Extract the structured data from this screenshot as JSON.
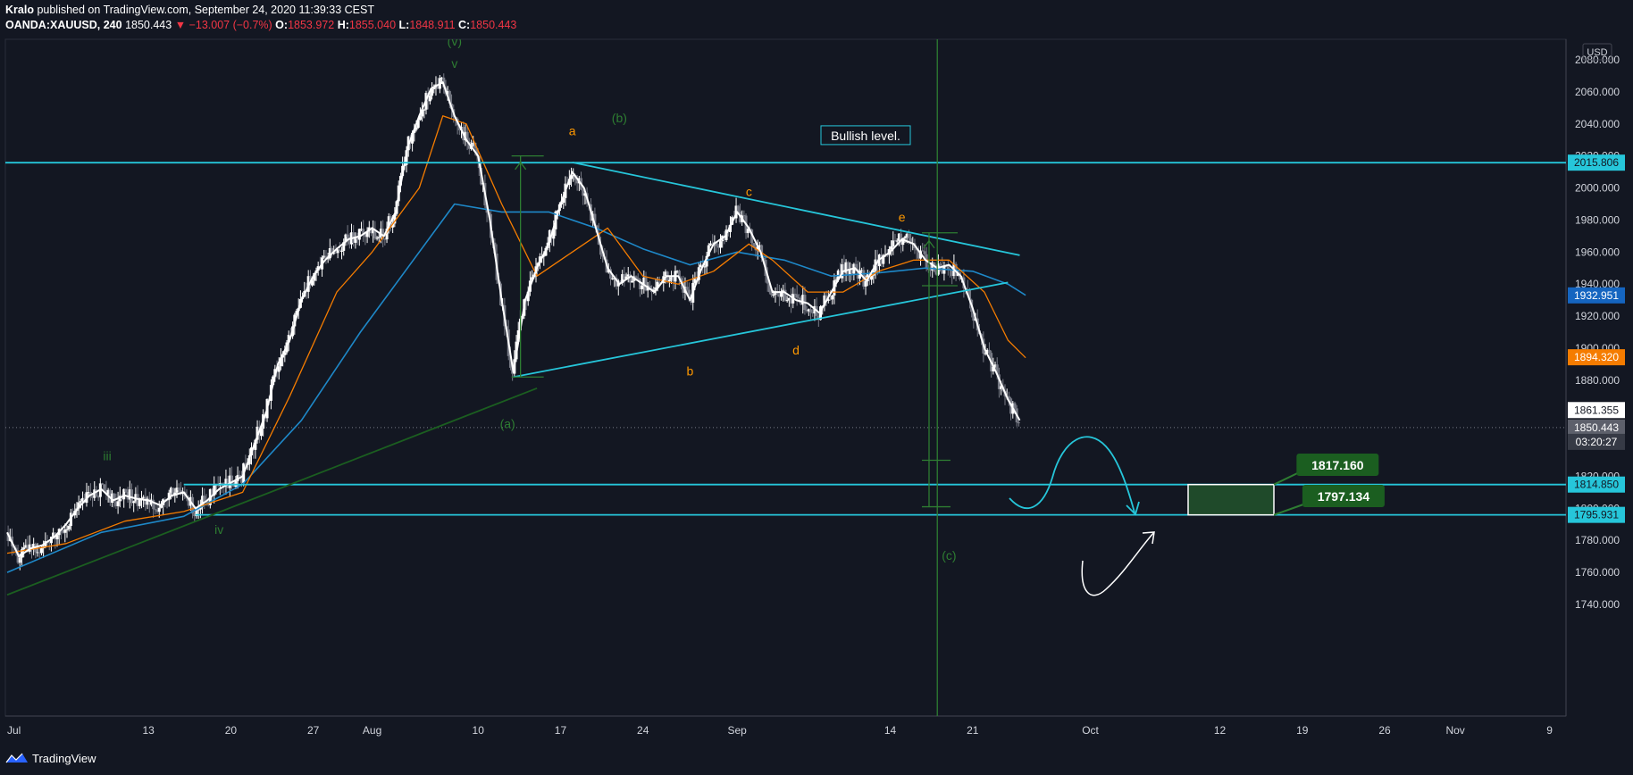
{
  "header": {
    "author": "Kralo",
    "published_text": "published on TradingView.com, September 24, 2020 11:39:33 CEST",
    "symbol": "OANDA:XAUUSD, 240",
    "last": "1850.443",
    "change": "−13.007 (−0.7%)",
    "o_label": "O:",
    "o": "1853.972",
    "h_label": "H:",
    "h": "1855.040",
    "l_label": "L:",
    "l": "1848.911",
    "c_label": "C:",
    "c": "1850.443"
  },
  "footer": {
    "brand": "TradingView",
    "logo_icon": "tradingview-logo-icon"
  },
  "colors": {
    "bg": "#131722",
    "grid": "#1e222d",
    "cyan": "#26c6da",
    "white": "#ffffff",
    "orange": "#f57c00",
    "blue": "#1e88c8",
    "green": "#1b5e20",
    "label_orange": "#ff9800",
    "wave_green": "#2e7d32",
    "up": "#ffffff",
    "down": "#787b86"
  },
  "chart_data": {
    "type": "candlestick",
    "currency": "USD",
    "y_range": [
      1730,
      2095
    ],
    "y_ticks": [
      "2080.000",
      "2060.000",
      "2040.000",
      "2020.000",
      "2000.000",
      "1980.000",
      "1960.000",
      "1940.000",
      "1920.000",
      "1900.000",
      "1880.000",
      "1860.000",
      "1840.000",
      "1820.000",
      "1800.000",
      "1780.000",
      "1760.000",
      "1740.000"
    ],
    "x_ticks": [
      {
        "label": "Jul",
        "day": 0
      },
      {
        "label": "13",
        "day": 12
      },
      {
        "label": "20",
        "day": 19
      },
      {
        "label": "27",
        "day": 26
      },
      {
        "label": "Aug",
        "day": 31
      },
      {
        "label": "10",
        "day": 40
      },
      {
        "label": "17",
        "day": 47
      },
      {
        "label": "24",
        "day": 54
      },
      {
        "label": "Sep",
        "day": 62
      },
      {
        "label": "14",
        "day": 75
      },
      {
        "label": "21",
        "day": 82
      },
      {
        "label": "Oct",
        "day": 92
      },
      {
        "label": "12",
        "day": 103
      },
      {
        "label": "19",
        "day": 110
      },
      {
        "label": "26",
        "day": 117
      },
      {
        "label": "Nov",
        "day": 123
      },
      {
        "label": "9",
        "day": 131
      }
    ],
    "price_tags": [
      {
        "value": "2015.806",
        "price": 2015.806,
        "style": "cyan"
      },
      {
        "value": "1932.951",
        "price": 1932.951,
        "style": "blue"
      },
      {
        "value": "1894.320",
        "price": 1894.32,
        "style": "orange"
      },
      {
        "value": "1861.355",
        "price": 1861.355,
        "style": "white"
      },
      {
        "value": "1850.443",
        "price": 1850.443,
        "style": "grey"
      },
      {
        "value": "03:20:27",
        "price": 1841.5,
        "style": "dark"
      },
      {
        "value": "1814.850",
        "price": 1814.85,
        "style": "cyan"
      },
      {
        "value": "1795.931",
        "price": 1795.931,
        "style": "cyan"
      }
    ],
    "price_path": [
      [
        0,
        1785
      ],
      [
        1,
        1770
      ],
      [
        2,
        1775
      ],
      [
        3,
        1777
      ],
      [
        4,
        1782
      ],
      [
        5,
        1790
      ],
      [
        6,
        1800
      ],
      [
        7,
        1808
      ],
      [
        8,
        1812
      ],
      [
        9,
        1805
      ],
      [
        10,
        1808
      ],
      [
        11,
        1806
      ],
      [
        12,
        1805
      ],
      [
        13,
        1802
      ],
      [
        14,
        1808
      ],
      [
        15,
        1810
      ],
      [
        16,
        1800
      ],
      [
        17,
        1805
      ],
      [
        18,
        1812
      ],
      [
        19,
        1816
      ],
      [
        20,
        1820
      ],
      [
        21,
        1840
      ],
      [
        22,
        1860
      ],
      [
        23,
        1890
      ],
      [
        24,
        1905
      ],
      [
        25,
        1930
      ],
      [
        26,
        1945
      ],
      [
        27,
        1955
      ],
      [
        28,
        1962
      ],
      [
        29,
        1968
      ],
      [
        30,
        1970
      ],
      [
        31,
        1975
      ],
      [
        32,
        1970
      ],
      [
        33,
        1985
      ],
      [
        34,
        2025
      ],
      [
        35,
        2045
      ],
      [
        36,
        2062
      ],
      [
        37,
        2066
      ],
      [
        38,
        2045
      ],
      [
        39,
        2030
      ],
      [
        40,
        2020
      ],
      [
        41,
        1980
      ],
      [
        42,
        1930
      ],
      [
        43,
        1885
      ],
      [
        44,
        1930
      ],
      [
        45,
        1950
      ],
      [
        46,
        1965
      ],
      [
        47,
        1990
      ],
      [
        48,
        2010
      ],
      [
        49,
        2000
      ],
      [
        50,
        1975
      ],
      [
        51,
        1950
      ],
      [
        52,
        1940
      ],
      [
        53,
        1945
      ],
      [
        54,
        1940
      ],
      [
        55,
        1935
      ],
      [
        56,
        1945
      ],
      [
        57,
        1945
      ],
      [
        58,
        1930
      ],
      [
        59,
        1950
      ],
      [
        60,
        1965
      ],
      [
        61,
        1970
      ],
      [
        62,
        1985
      ],
      [
        63,
        1975
      ],
      [
        64,
        1960
      ],
      [
        65,
        1935
      ],
      [
        66,
        1935
      ],
      [
        67,
        1930
      ],
      [
        68,
        1928
      ],
      [
        69,
        1922
      ],
      [
        70,
        1935
      ],
      [
        71,
        1948
      ],
      [
        72,
        1950
      ],
      [
        73,
        1942
      ],
      [
        74,
        1955
      ],
      [
        75,
        1960
      ],
      [
        76,
        1968
      ],
      [
        77,
        1965
      ],
      [
        78,
        1955
      ],
      [
        79,
        1950
      ],
      [
        80,
        1952
      ],
      [
        81,
        1945
      ],
      [
        82,
        1925
      ],
      [
        83,
        1900
      ],
      [
        84,
        1885
      ],
      [
        85,
        1868
      ],
      [
        86,
        1855
      ]
    ],
    "indicators": {
      "orange_ma": [
        [
          0,
          1772
        ],
        [
          5,
          1778
        ],
        [
          10,
          1792
        ],
        [
          15,
          1798
        ],
        [
          20,
          1810
        ],
        [
          24,
          1870
        ],
        [
          28,
          1935
        ],
        [
          31,
          1960
        ],
        [
          35,
          2000
        ],
        [
          37,
          2045
        ],
        [
          39,
          2040
        ],
        [
          42,
          1990
        ],
        [
          45,
          1945
        ],
        [
          48,
          1960
        ],
        [
          51,
          1975
        ],
        [
          54,
          1945
        ],
        [
          57,
          1940
        ],
        [
          60,
          1948
        ],
        [
          63,
          1965
        ],
        [
          65,
          1955
        ],
        [
          68,
          1935
        ],
        [
          71,
          1935
        ],
        [
          74,
          1948
        ],
        [
          77,
          1955
        ],
        [
          80,
          1955
        ],
        [
          83,
          1935
        ],
        [
          85,
          1905
        ],
        [
          86.5,
          1894
        ]
      ],
      "blue_ma": [
        [
          0,
          1760
        ],
        [
          8,
          1785
        ],
        [
          15,
          1795
        ],
        [
          20,
          1815
        ],
        [
          25,
          1855
        ],
        [
          30,
          1910
        ],
        [
          35,
          1960
        ],
        [
          38,
          1990
        ],
        [
          42,
          1985
        ],
        [
          46,
          1985
        ],
        [
          50,
          1975
        ],
        [
          54,
          1962
        ],
        [
          58,
          1952
        ],
        [
          62,
          1960
        ],
        [
          66,
          1955
        ],
        [
          70,
          1945
        ],
        [
          74,
          1947
        ],
        [
          78,
          1950
        ],
        [
          82,
          1948
        ],
        [
          85,
          1940
        ],
        [
          86.5,
          1933
        ]
      ]
    },
    "lines": [
      {
        "name": "bullish-level-line",
        "from": [
          -3,
          2015.806
        ],
        "to": [
          150,
          2015.806
        ]
      },
      {
        "name": "support-1814",
        "from": [
          15,
          1814.85
        ],
        "to": [
          150,
          1814.85
        ]
      },
      {
        "name": "support-1795",
        "from": [
          16,
          1795.931
        ],
        "to": [
          150,
          1795.931
        ]
      },
      {
        "name": "triangle-upper",
        "from": [
          48,
          2016
        ],
        "to": [
          86,
          1958
        ]
      },
      {
        "name": "triangle-lower",
        "from": [
          43,
          1882
        ],
        "to": [
          85,
          1941
        ]
      },
      {
        "name": "long-trendline",
        "from": [
          0,
          1746
        ],
        "to": [
          45,
          1875
        ]
      }
    ],
    "annotations": {
      "labels": [
        {
          "text": "(v)",
          "day": 38,
          "price": 2089,
          "color": "wave_green"
        },
        {
          "text": "v",
          "day": 38,
          "price": 2075,
          "color": "wave_green"
        },
        {
          "text": "a",
          "day": 48,
          "price": 2033,
          "color": "label_orange"
        },
        {
          "text": "(b)",
          "day": 52,
          "price": 2041,
          "color": "wave_green"
        },
        {
          "text": "c",
          "day": 63,
          "price": 1995,
          "color": "label_orange"
        },
        {
          "text": "e",
          "day": 76,
          "price": 1979,
          "color": "label_orange"
        },
        {
          "text": "b",
          "day": 58,
          "price": 1883,
          "color": "label_orange"
        },
        {
          "text": "d",
          "day": 67,
          "price": 1896,
          "color": "label_orange"
        },
        {
          "text": "(a)",
          "day": 42.5,
          "price": 1850,
          "color": "wave_green"
        },
        {
          "text": "iii",
          "day": 8.5,
          "price": 1830,
          "color": "wave_green"
        },
        {
          "text": "iv",
          "day": 18,
          "price": 1784,
          "color": "wave_green"
        },
        {
          "text": "(c)",
          "day": 80,
          "price": 1768,
          "color": "wave_green"
        }
      ],
      "bullish_level": "Bullish level.",
      "target_boxes": [
        {
          "value": "1817.160",
          "day": 113,
          "price": 1827.5
        },
        {
          "value": "1797.134",
          "day": 113.5,
          "price": 1808
        }
      ]
    }
  }
}
